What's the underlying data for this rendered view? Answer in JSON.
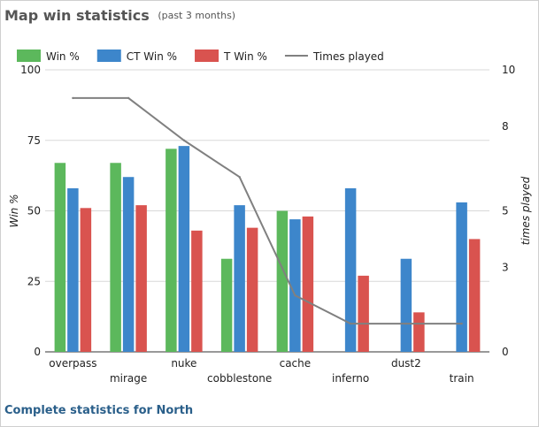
{
  "header": {
    "title": "Map win statistics",
    "subtitle": "(past 3 months)"
  },
  "footer": {
    "link_label": "Complete statistics for North"
  },
  "colors": {
    "win": "#5cb85c",
    "ct": "#3d86cb",
    "t": "#d9534f",
    "times": "#808080"
  },
  "chart_data": {
    "type": "bar",
    "categories": [
      "overpass",
      "mirage",
      "nuke",
      "cobblestone",
      "cache",
      "inferno",
      "dust2",
      "train"
    ],
    "series": [
      {
        "name": "Win %",
        "axis": "left",
        "values": [
          67,
          67,
          72,
          33,
          50,
          0,
          0,
          0
        ]
      },
      {
        "name": "CT Win %",
        "axis": "left",
        "values": [
          58,
          62,
          73,
          52,
          47,
          58,
          33,
          53
        ]
      },
      {
        "name": "T Win %",
        "axis": "left",
        "values": [
          51,
          52,
          43,
          44,
          48,
          27,
          14,
          40
        ]
      },
      {
        "name": "Times played",
        "axis": "right",
        "type": "line",
        "values": [
          9,
          9,
          7.5,
          6.2,
          2,
          1,
          1,
          1
        ]
      }
    ],
    "ylabel": "Win %",
    "y2label": "times played",
    "ylim": [
      0,
      100
    ],
    "y2lim": [
      0,
      10
    ],
    "yticks": [
      0,
      25,
      50,
      75,
      100
    ],
    "y2ticks": [
      0,
      3,
      5,
      8,
      10
    ],
    "grid": true,
    "legend_position": "top-left"
  }
}
